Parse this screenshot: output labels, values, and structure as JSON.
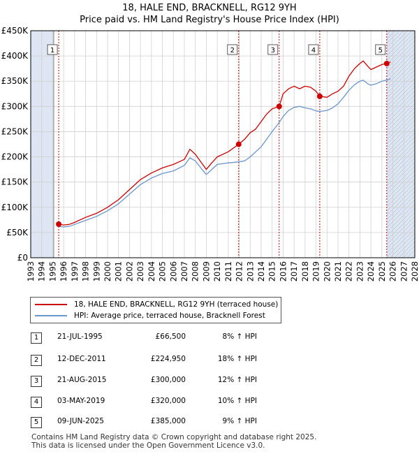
{
  "header": {
    "title": "18, HALE END, BRACKNELL, RG12 9YH",
    "subtitle": "Price paid vs. HM Land Registry's House Price Index (HPI)"
  },
  "legend": {
    "property_label": "18, HALE END, BRACKNELL, RG12 9YH (terraced house)",
    "hpi_label": "HPI: Average price, terraced house, Bracknell Forest"
  },
  "colors": {
    "property": "#cc0000",
    "hpi": "#6a96cc",
    "marker_line": "#cc0000",
    "shade": "#dde6f2",
    "grid": "#d0d0d0"
  },
  "chart_data": {
    "type": "line",
    "xlim": [
      1993,
      2028
    ],
    "ylim": [
      0,
      450000
    ],
    "x_ticks": [
      1993,
      1994,
      1995,
      1996,
      1997,
      1998,
      1999,
      2000,
      2001,
      2002,
      2003,
      2004,
      2005,
      2006,
      2007,
      2008,
      2009,
      2010,
      2011,
      2012,
      2013,
      2014,
      2015,
      2016,
      2017,
      2018,
      2019,
      2020,
      2021,
      2022,
      2023,
      2024,
      2025,
      2026,
      2027,
      2028
    ],
    "y_ticks": [
      {
        "value": 0,
        "label": "£0"
      },
      {
        "value": 50000,
        "label": "£50K"
      },
      {
        "value": 100000,
        "label": "£100K"
      },
      {
        "value": 150000,
        "label": "£150K"
      },
      {
        "value": 200000,
        "label": "£200K"
      },
      {
        "value": 250000,
        "label": "£250K"
      },
      {
        "value": 300000,
        "label": "£300K"
      },
      {
        "value": 350000,
        "label": "£350K"
      },
      {
        "value": 400000,
        "label": "£400K"
      },
      {
        "value": 450000,
        "label": "£450K"
      }
    ],
    "shaded_ranges": [
      [
        1993,
        1995.1
      ],
      [
        2025.45,
        2028
      ]
    ],
    "series": [
      {
        "name": "18, HALE END, BRACKNELL, RG12 9YH (terraced house)",
        "points": [
          [
            1995.55,
            66500
          ],
          [
            1996,
            65000
          ],
          [
            1996.5,
            66000
          ],
          [
            1997,
            70000
          ],
          [
            1998,
            80000
          ],
          [
            1999,
            88000
          ],
          [
            2000,
            100000
          ],
          [
            2001,
            115000
          ],
          [
            2002,
            135000
          ],
          [
            2003,
            155000
          ],
          [
            2004,
            168000
          ],
          [
            2005,
            178000
          ],
          [
            2006,
            185000
          ],
          [
            2007,
            195000
          ],
          [
            2007.5,
            215000
          ],
          [
            2008,
            205000
          ],
          [
            2008.5,
            190000
          ],
          [
            2009,
            175000
          ],
          [
            2009.5,
            188000
          ],
          [
            2010,
            200000
          ],
          [
            2011,
            210000
          ],
          [
            2011.95,
            224950
          ],
          [
            2012.5,
            235000
          ],
          [
            2013,
            248000
          ],
          [
            2013.5,
            255000
          ],
          [
            2014,
            270000
          ],
          [
            2014.5,
            285000
          ],
          [
            2015,
            295000
          ],
          [
            2015.64,
            300000
          ],
          [
            2016,
            325000
          ],
          [
            2016.5,
            335000
          ],
          [
            2017,
            340000
          ],
          [
            2017.5,
            335000
          ],
          [
            2018,
            340000
          ],
          [
            2018.5,
            338000
          ],
          [
            2019,
            330000
          ],
          [
            2019.34,
            320000
          ],
          [
            2020,
            318000
          ],
          [
            2020.5,
            325000
          ],
          [
            2021,
            330000
          ],
          [
            2021.5,
            340000
          ],
          [
            2022,
            360000
          ],
          [
            2022.5,
            375000
          ],
          [
            2023,
            385000
          ],
          [
            2023.3,
            390000
          ],
          [
            2023.7,
            380000
          ],
          [
            2024,
            373000
          ],
          [
            2024.5,
            378000
          ],
          [
            2025,
            383000
          ],
          [
            2025.44,
            385000
          ],
          [
            2025.8,
            388000
          ]
        ]
      },
      {
        "name": "HPI: Average price, terraced house, Bracknell Forest",
        "points": [
          [
            1995.55,
            62000
          ],
          [
            1996,
            61000
          ],
          [
            1996.5,
            62000
          ],
          [
            1997,
            66000
          ],
          [
            1998,
            74000
          ],
          [
            1999,
            82000
          ],
          [
            2000,
            93000
          ],
          [
            2001,
            107000
          ],
          [
            2002,
            126000
          ],
          [
            2003,
            145000
          ],
          [
            2004,
            158000
          ],
          [
            2005,
            167000
          ],
          [
            2006,
            172000
          ],
          [
            2007,
            183000
          ],
          [
            2007.5,
            198000
          ],
          [
            2008,
            192000
          ],
          [
            2008.5,
            178000
          ],
          [
            2009,
            165000
          ],
          [
            2009.5,
            175000
          ],
          [
            2010,
            185000
          ],
          [
            2011,
            188000
          ],
          [
            2011.95,
            190000
          ],
          [
            2012.5,
            192000
          ],
          [
            2013,
            200000
          ],
          [
            2014,
            220000
          ],
          [
            2015,
            250000
          ],
          [
            2015.64,
            268000
          ],
          [
            2016,
            280000
          ],
          [
            2016.5,
            292000
          ],
          [
            2017,
            298000
          ],
          [
            2017.5,
            300000
          ],
          [
            2018,
            297000
          ],
          [
            2018.5,
            295000
          ],
          [
            2019,
            291000
          ],
          [
            2019.34,
            290000
          ],
          [
            2020,
            292000
          ],
          [
            2020.5,
            297000
          ],
          [
            2021,
            305000
          ],
          [
            2021.5,
            318000
          ],
          [
            2022,
            332000
          ],
          [
            2022.5,
            343000
          ],
          [
            2023,
            350000
          ],
          [
            2023.3,
            352000
          ],
          [
            2023.7,
            345000
          ],
          [
            2024,
            342000
          ],
          [
            2024.5,
            345000
          ],
          [
            2025,
            350000
          ],
          [
            2025.44,
            352000
          ],
          [
            2025.8,
            355000
          ]
        ]
      }
    ],
    "sales": [
      {
        "label": "1",
        "x": 1995.55,
        "value": 66500
      },
      {
        "label": "2",
        "x": 2011.95,
        "value": 224950
      },
      {
        "label": "3",
        "x": 2015.64,
        "value": 300000
      },
      {
        "label": "4",
        "x": 2019.34,
        "value": 320000
      },
      {
        "label": "5",
        "x": 2025.44,
        "value": 385000
      }
    ]
  },
  "transactions": [
    {
      "num": "1",
      "date": "21-JUL-1995",
      "price": "£66,500",
      "hpi": "8% ↑ HPI"
    },
    {
      "num": "2",
      "date": "12-DEC-2011",
      "price": "£224,950",
      "hpi": "18% ↑ HPI"
    },
    {
      "num": "3",
      "date": "21-AUG-2015",
      "price": "£300,000",
      "hpi": "12% ↑ HPI"
    },
    {
      "num": "4",
      "date": "03-MAY-2019",
      "price": "£320,000",
      "hpi": "10% ↑ HPI"
    },
    {
      "num": "5",
      "date": "09-JUN-2025",
      "price": "£385,000",
      "hpi": "9% ↑ HPI"
    }
  ],
  "footer": {
    "line1": "Contains HM Land Registry data © Crown copyright and database right 2025.",
    "line2": "This data is licensed under the Open Government Licence v3.0."
  }
}
